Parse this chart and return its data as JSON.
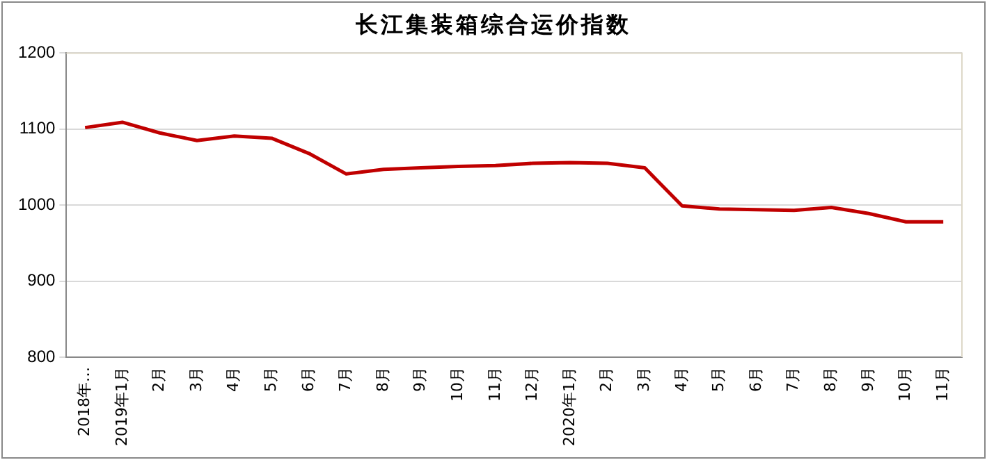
{
  "chart_data": {
    "type": "line",
    "title": "长江集装箱综合运价指数",
    "categories": [
      "2018年…",
      "2019年1月",
      "2月",
      "3月",
      "4月",
      "5月",
      "6月",
      "7月",
      "8月",
      "9月",
      "10月",
      "11月",
      "12月",
      "2020年1月",
      "2月",
      "3月",
      "4月",
      "5月",
      "6月",
      "7月",
      "8月",
      "9月",
      "10月",
      "11月"
    ],
    "series": [
      {
        "color": "#c00000",
        "values": [
          1102,
          1109,
          1095,
          1085,
          1091,
          1088,
          1068,
          1041,
          1047,
          1049,
          1051,
          1052,
          1055,
          1056,
          1055,
          1049,
          999,
          995,
          994,
          993,
          997,
          989,
          978,
          978
        ]
      }
    ],
    "ylim": [
      800,
      1200
    ],
    "yticks": [
      800,
      900,
      1000,
      1100,
      1200
    ],
    "grid": "y",
    "legend": false,
    "marker": "none",
    "line_style": "solid"
  }
}
